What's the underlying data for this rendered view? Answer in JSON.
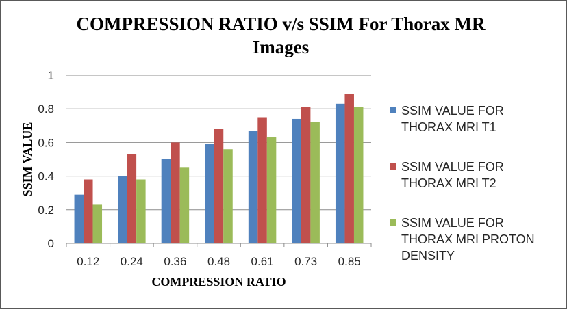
{
  "chart_data": {
    "type": "bar",
    "title_line1": "COMPRESSION RATIO v/s SSIM For Thorax MR",
    "title_line2": "Images",
    "xlabel": "COMPRESSION RATIO",
    "ylabel": "SSIM VALUE",
    "categories": [
      "0.12",
      "0.24",
      "0.36",
      "0.48",
      "0.61",
      "0.73",
      "0.85"
    ],
    "ylim": [
      0,
      1
    ],
    "yticks": [
      "0",
      "0.2",
      "0.4",
      "0.6",
      "0.8",
      "1"
    ],
    "grid": true,
    "legend_position": "right",
    "series": [
      {
        "name": "SSIM VALUE FOR THORAX MRI T1",
        "name_lines": [
          "SSIM VALUE FOR",
          "THORAX MRI T1"
        ],
        "color": "#4F81BD",
        "values": [
          0.29,
          0.4,
          0.5,
          0.59,
          0.67,
          0.74,
          0.83
        ]
      },
      {
        "name": "SSIM VALUE FOR THORAX MRI T2",
        "name_lines": [
          "SSIM VALUE FOR",
          "THORAX MRI T2"
        ],
        "color": "#C0504D",
        "values": [
          0.38,
          0.53,
          0.6,
          0.68,
          0.75,
          0.81,
          0.89
        ]
      },
      {
        "name": "SSIM VALUE FOR THORAX MRI PROTON DENSITY",
        "name_lines": [
          "SSIM VALUE FOR",
          "THORAX MRI PROTON",
          "DENSITY"
        ],
        "color": "#9BBB59",
        "values": [
          0.23,
          0.38,
          0.45,
          0.56,
          0.63,
          0.72,
          0.81
        ]
      }
    ]
  }
}
